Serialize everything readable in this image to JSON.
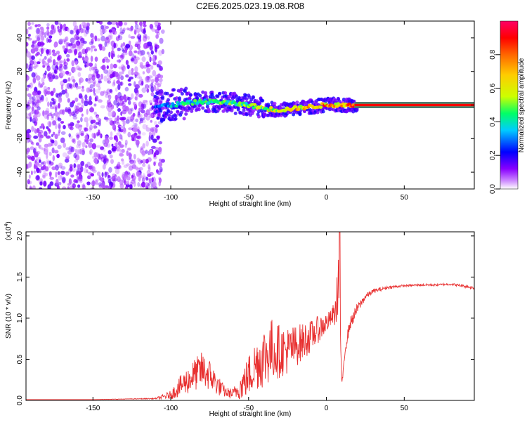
{
  "chart_data": [
    {
      "type": "heatmap",
      "title": "C2E6.2025.023.19.08.R08",
      "xlabel": "Height of straight line (km)",
      "ylabel": "Frequency (Hz)",
      "xlim": [
        -193,
        95
      ],
      "ylim": [
        -50,
        50
      ],
      "xticks": [
        -150,
        -100,
        -50,
        0,
        50
      ],
      "xtick_labels": [
        "-150",
        "-100",
        "-50",
        "0",
        "50"
      ],
      "yticks": [
        -40,
        -20,
        0,
        20,
        40
      ],
      "ytick_labels": [
        "-40",
        "-20",
        "0",
        "20",
        "40"
      ],
      "colorbar": {
        "label": "Normalized spectral amplitude",
        "range": [
          0.0,
          1.0
        ],
        "ticks": [
          0.0,
          0.2,
          0.4,
          0.6,
          0.8
        ],
        "tick_labels": [
          "0.0",
          "0.2",
          "0.4",
          "0.6",
          "0.8"
        ],
        "colors": [
          "#ffffff",
          "#cc88ff",
          "#8800ff",
          "#0000ff",
          "#00ccff",
          "#00ff66",
          "#ccff00",
          "#ffcc00",
          "#ff6600",
          "#ff0000",
          "#ff0066"
        ]
      },
      "ridge": {
        "description": "dominant frequency ridge",
        "x": [
          -110,
          -100,
          -90,
          -80,
          -70,
          -60,
          -50,
          -40,
          -30,
          -20,
          -10,
          0,
          10,
          20,
          95
        ],
        "freq": [
          -1,
          0,
          1,
          2,
          2,
          1,
          0,
          -2,
          -3,
          -2,
          -1,
          0,
          0,
          0,
          0
        ],
        "amplitude": [
          0.3,
          0.45,
          0.5,
          0.55,
          0.55,
          0.55,
          0.6,
          0.7,
          0.75,
          0.8,
          0.85,
          0.9,
          0.95,
          1.0,
          1.0
        ]
      },
      "noise_region_x": [
        -193,
        -105
      ]
    },
    {
      "type": "line",
      "xlabel": "Height of straight line (km)",
      "ylabel": "SNR (10 * v/v)",
      "y_multiplier_label": "(x10",
      "y_multiplier_exp": "4",
      "y_multiplier_close": ")",
      "xlim": [
        -193,
        95
      ],
      "ylim": [
        0,
        2.05
      ],
      "xticks": [
        -150,
        -100,
        -50,
        0,
        50
      ],
      "xtick_labels": [
        "-150",
        "-100",
        "-50",
        "0",
        "50"
      ],
      "yticks": [
        0,
        0.5,
        1.0,
        1.5,
        2.0
      ],
      "ytick_labels": [
        "0.0",
        "0.5",
        "1.0",
        "1.5",
        "2.0"
      ],
      "series": [
        {
          "name": "SNR",
          "color": "#e83030",
          "x": [
            -193,
            -150,
            -110,
            -100,
            -95,
            -90,
            -85,
            -80,
            -75,
            -70,
            -65,
            -60,
            -55,
            -50,
            -45,
            -40,
            -35,
            -30,
            -25,
            -20,
            -15,
            -10,
            -5,
            0,
            3,
            6,
            8,
            9,
            10,
            12,
            15,
            20,
            25,
            30,
            40,
            50,
            60,
            70,
            80,
            90,
            95
          ],
          "base": [
            0.01,
            0.01,
            0.02,
            0.05,
            0.12,
            0.18,
            0.25,
            0.3,
            0.25,
            0.15,
            0.08,
            0.06,
            0.12,
            0.22,
            0.35,
            0.42,
            0.5,
            0.5,
            0.52,
            0.58,
            0.65,
            0.72,
            0.82,
            0.9,
            0.97,
            1.02,
            1.4,
            0.7,
            0.22,
            0.6,
            0.9,
            1.1,
            1.25,
            1.32,
            1.37,
            1.39,
            1.4,
            1.4,
            1.41,
            1.38,
            1.36
          ],
          "noise": [
            0.0,
            0.0,
            0.01,
            0.08,
            0.18,
            0.25,
            0.3,
            0.35,
            0.3,
            0.2,
            0.1,
            0.1,
            0.25,
            0.4,
            0.5,
            0.6,
            0.6,
            0.5,
            0.45,
            0.4,
            0.35,
            0.3,
            0.25,
            0.2,
            0.15,
            0.3,
            0.6,
            0.2,
            0.05,
            0.1,
            0.12,
            0.1,
            0.06,
            0.04,
            0.03,
            0.02,
            0.02,
            0.02,
            0.02,
            0.03,
            0.03
          ]
        }
      ]
    }
  ]
}
